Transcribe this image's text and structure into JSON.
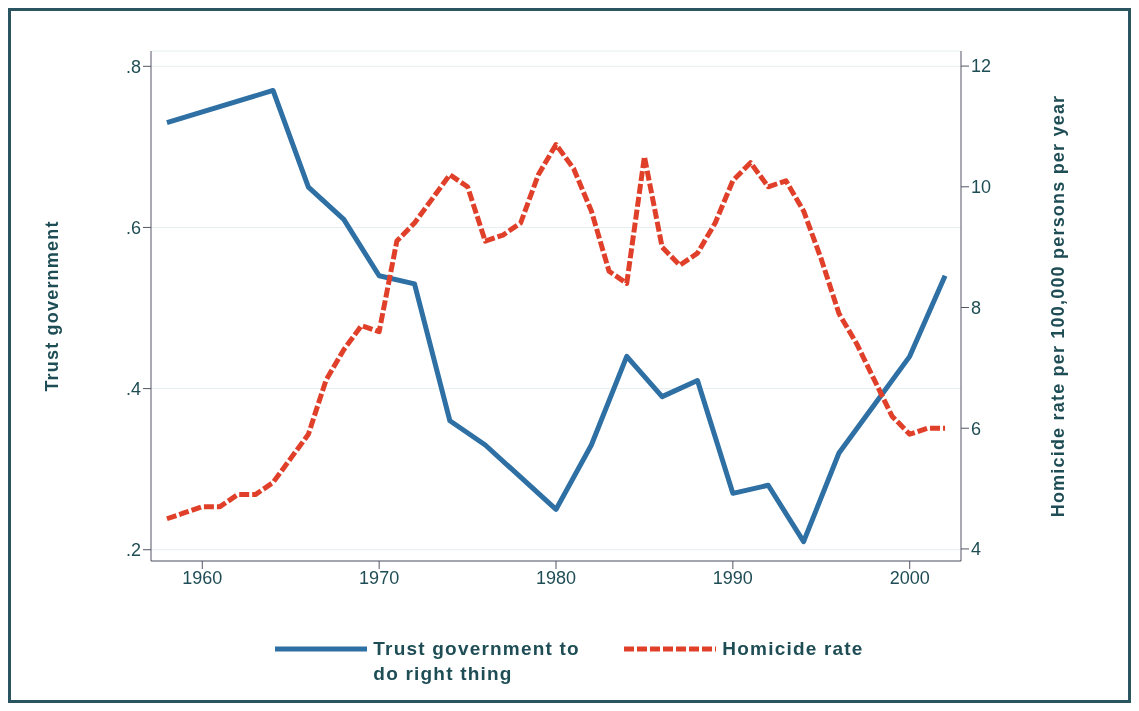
{
  "chart_data": {
    "type": "line",
    "ylabel": "Trust government",
    "y2label": "Homicide rate per 100,000 persons per year",
    "xlim": [
      1957.1,
      2002.9
    ],
    "xticks": [
      1960,
      1970,
      1980,
      1990,
      2000
    ],
    "ylim": [
      0.186,
      0.819
    ],
    "yticks": [
      {
        "value": 0.2,
        "label": ".2"
      },
      {
        "value": 0.4,
        "label": ".4"
      },
      {
        "value": 0.6,
        "label": ".6"
      },
      {
        "value": 0.8,
        "label": ".8"
      }
    ],
    "y2lim": [
      3.8,
      12.25
    ],
    "y2ticks": [
      4,
      6,
      8,
      10,
      12
    ],
    "grid": "y",
    "legend": "bottom",
    "series": [
      {
        "name": "Trust government to do right thing",
        "color": "#2e6fa4",
        "line_style": "solid",
        "x": [
          1958,
          1964,
          1966,
          1968,
          1970,
          1972,
          1974,
          1976,
          1978,
          1980,
          1982,
          1984,
          1986,
          1988,
          1990,
          1992,
          1994,
          1996,
          1998,
          2000,
          2002
        ],
        "values": [
          0.73,
          0.77,
          0.65,
          0.61,
          0.54,
          0.53,
          0.36,
          0.33,
          0.29,
          0.25,
          0.33,
          0.44,
          0.39,
          0.41,
          0.27,
          0.28,
          0.21,
          0.32,
          0.38,
          0.44,
          0.54
        ]
      },
      {
        "name": "Homicide rate",
        "color": "#e0402a",
        "line_style": "dashed",
        "axis": "y2",
        "x": [
          1958,
          1959,
          1960,
          1961,
          1962,
          1963,
          1964,
          1965,
          1966,
          1967,
          1968,
          1969,
          1970,
          1971,
          1972,
          1973,
          1974,
          1975,
          1976,
          1977,
          1978,
          1979,
          1980,
          1981,
          1982,
          1983,
          1984,
          1985,
          1986,
          1987,
          1988,
          1989,
          1990,
          1991,
          1992,
          1993,
          1994,
          1995,
          1996,
          1997,
          1998,
          1999,
          2000,
          2001,
          2002
        ],
        "values": [
          4.5,
          4.6,
          4.7,
          4.7,
          4.9,
          4.9,
          5.1,
          5.5,
          5.9,
          6.8,
          7.3,
          7.7,
          7.6,
          9.1,
          9.4,
          9.8,
          10.2,
          10.0,
          9.1,
          9.2,
          9.4,
          10.2,
          10.7,
          10.3,
          9.6,
          8.6,
          8.4,
          10.5,
          9.0,
          8.7,
          8.9,
          9.4,
          10.1,
          10.4,
          10.0,
          10.1,
          9.6,
          8.8,
          7.9,
          7.4,
          6.8,
          6.2,
          5.9,
          6.0,
          6.0
        ]
      }
    ]
  }
}
